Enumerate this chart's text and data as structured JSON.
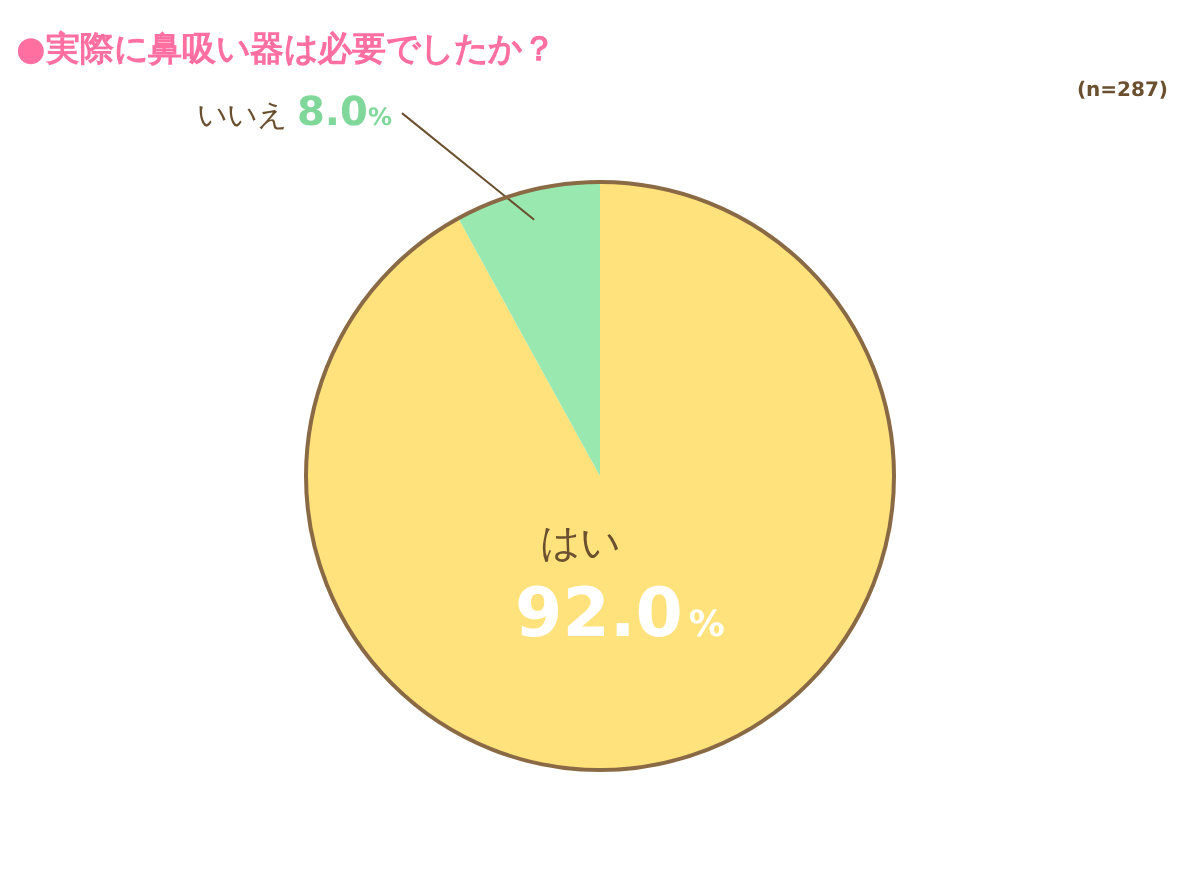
{
  "chart_data": {
    "type": "pie",
    "title": "●実際に鼻吸い器は必要でしたか？",
    "annotations": [
      "(n=287)"
    ],
    "categories": [
      "はい",
      "いいえ"
    ],
    "values": [
      92.0,
      8.0
    ],
    "value_labels": [
      "92.0%",
      "8.0%"
    ],
    "colors": [
      "#ffe27c",
      "#98e8b0"
    ]
  }
}
